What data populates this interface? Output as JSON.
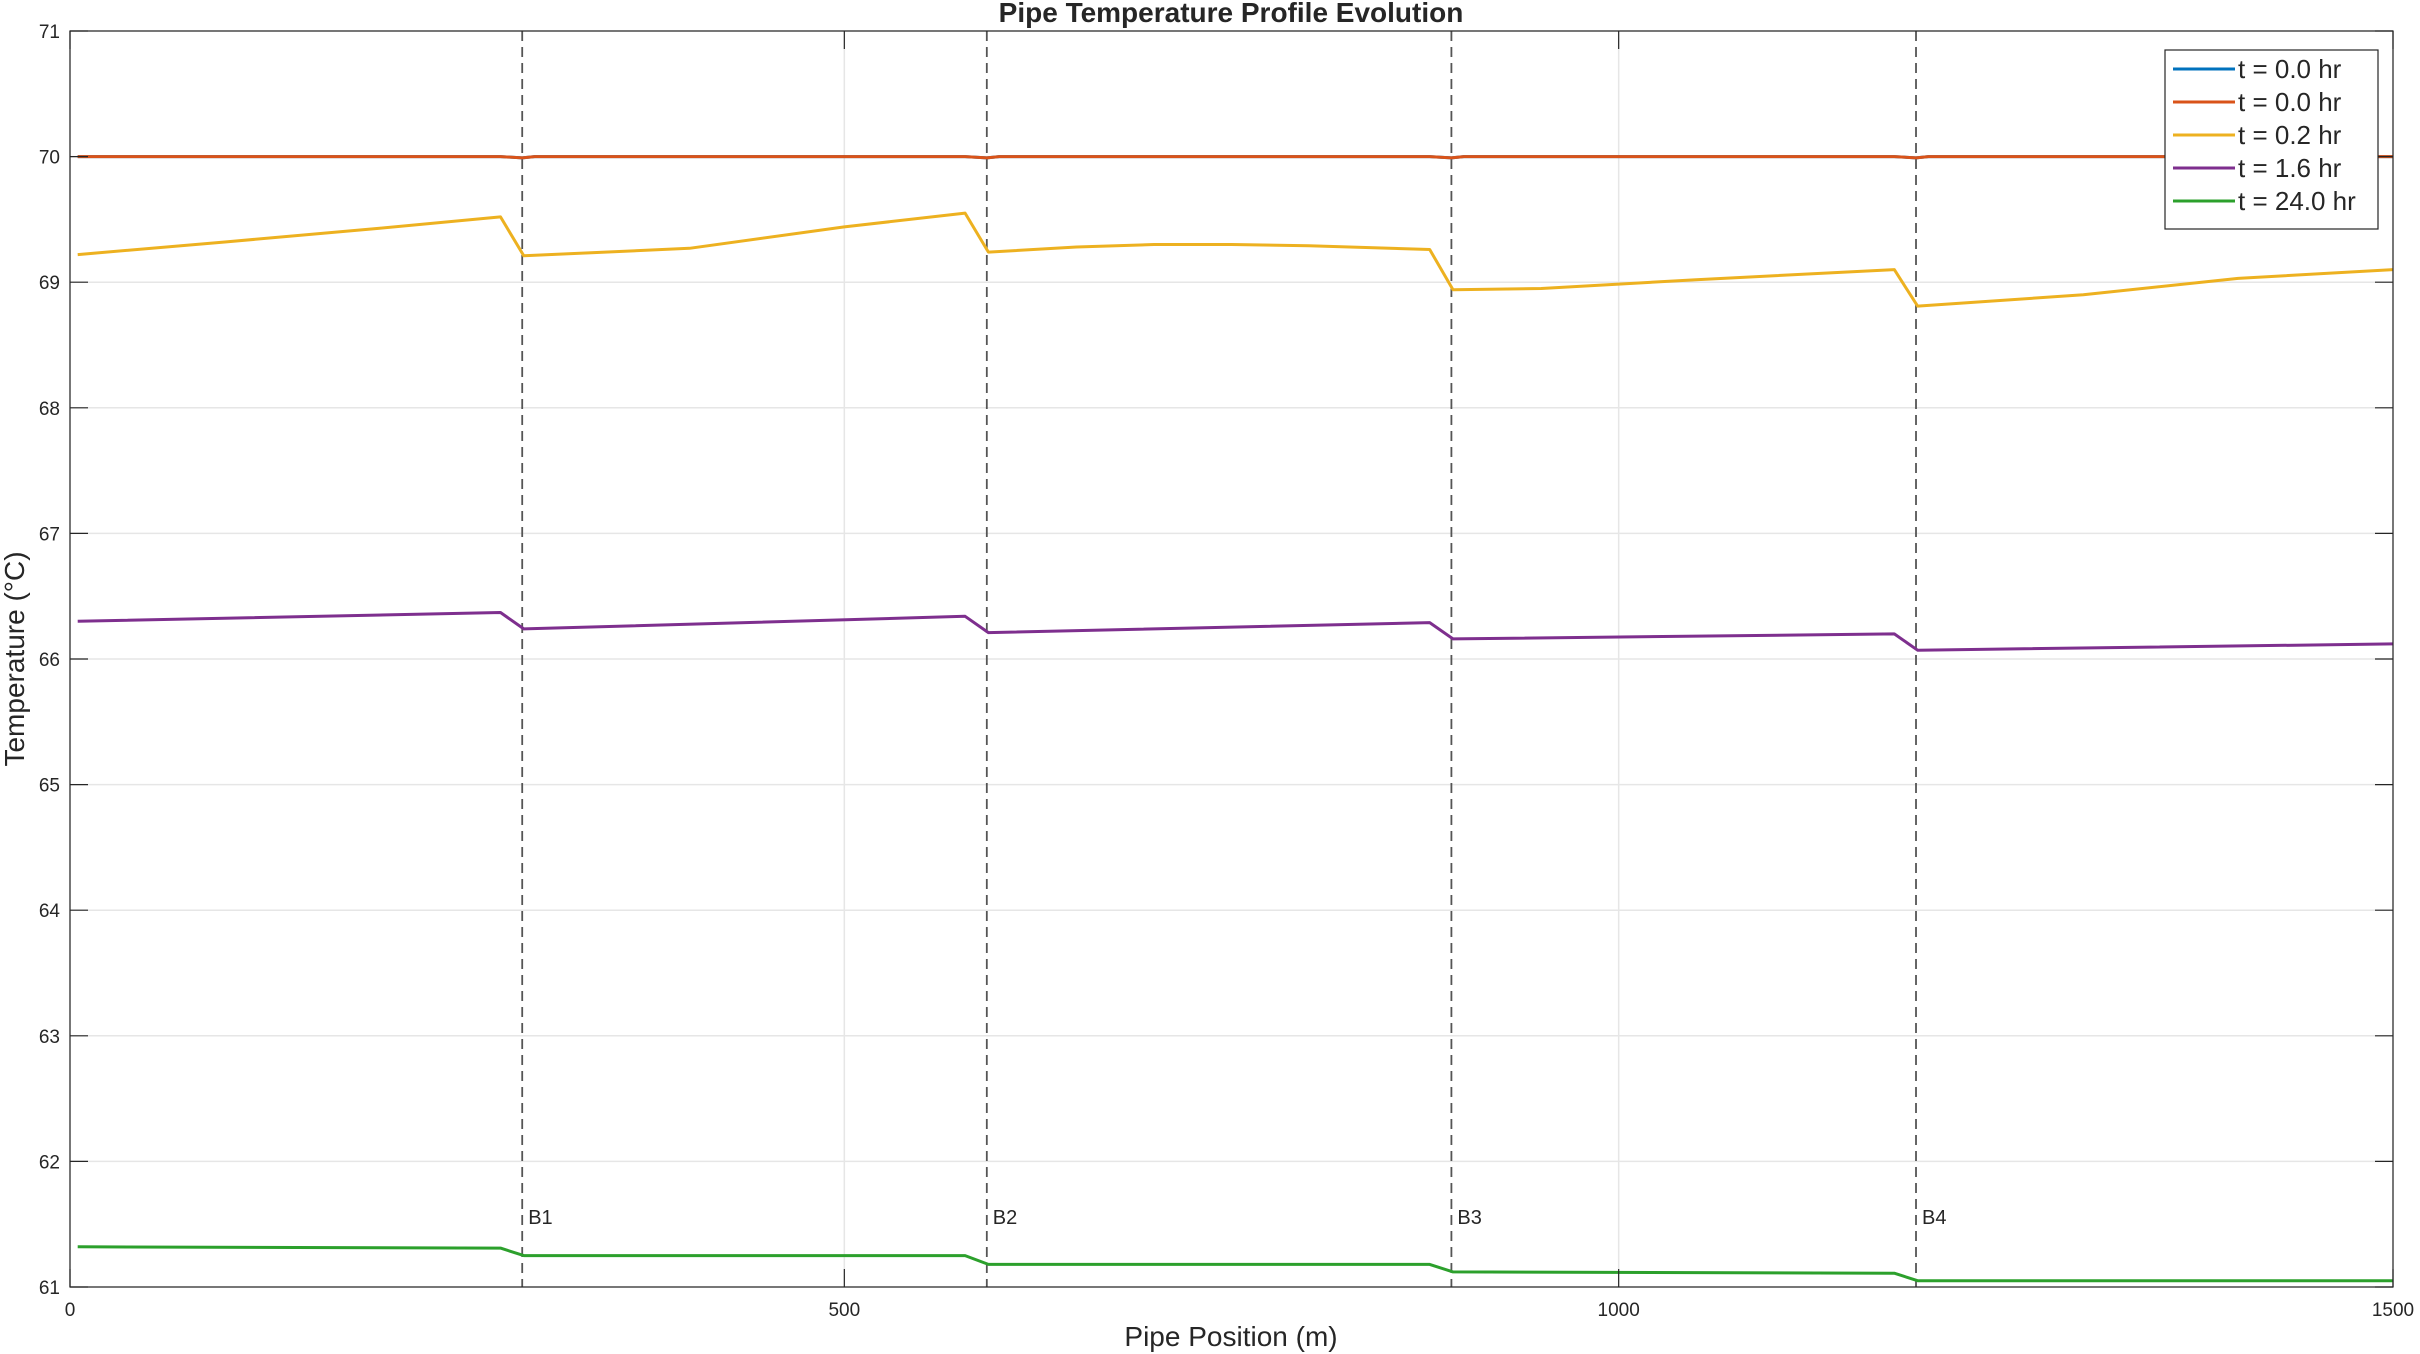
{
  "chart_data": {
    "type": "line",
    "title": "Pipe Temperature Profile Evolution",
    "xlabel": "Pipe Position (m)",
    "ylabel": "Temperature (°C)",
    "xlim": [
      0,
      1500
    ],
    "ylim": [
      61,
      71
    ],
    "xticks": [
      0,
      500,
      1000,
      1500
    ],
    "yticks": [
      61,
      62,
      63,
      64,
      65,
      66,
      67,
      68,
      69,
      70,
      71
    ],
    "grid": true,
    "legend_position": "top-right",
    "markers": [
      {
        "label": "B1",
        "x": 292
      },
      {
        "label": "B2",
        "x": 592
      },
      {
        "label": "B3",
        "x": 892
      },
      {
        "label": "B4",
        "x": 1192
      }
    ],
    "series": [
      {
        "name": "t = 0.0 hr",
        "color": "#0072BD",
        "x": [
          5,
          278,
          292,
          300,
          578,
          592,
          600,
          878,
          892,
          900,
          1178,
          1192,
          1200,
          1500
        ],
        "y": [
          70,
          70,
          69.99,
          70,
          70,
          69.99,
          70,
          70,
          69.99,
          70,
          70,
          69.99,
          70,
          70
        ]
      },
      {
        "name": "t = 0.0 hr",
        "color": "#D95319",
        "x": [
          5,
          278,
          292,
          300,
          578,
          592,
          600,
          878,
          892,
          900,
          1178,
          1192,
          1200,
          1500
        ],
        "y": [
          70,
          70,
          69.99,
          70,
          70,
          69.99,
          70,
          70,
          69.99,
          70,
          70,
          69.99,
          70,
          70
        ]
      },
      {
        "name": "t = 0.2 hr",
        "color": "#EDB120",
        "x": [
          5,
          100,
          200,
          278,
          293,
          400,
          500,
          578,
          593,
          650,
          700,
          750,
          800,
          878,
          893,
          950,
          1050,
          1178,
          1193,
          1300,
          1400,
          1500
        ],
        "y": [
          69.22,
          69.32,
          69.43,
          69.52,
          69.21,
          69.27,
          69.44,
          69.55,
          69.24,
          69.28,
          69.3,
          69.3,
          69.29,
          69.26,
          68.94,
          68.95,
          69.02,
          69.1,
          68.81,
          68.9,
          69.03,
          69.1
        ]
      },
      {
        "name": "t = 1.6 hr",
        "color": "#7E2F8E",
        "x": [
          5,
          278,
          293,
          578,
          593,
          878,
          893,
          1178,
          1193,
          1500
        ],
        "y": [
          66.3,
          66.37,
          66.24,
          66.34,
          66.21,
          66.29,
          66.16,
          66.2,
          66.07,
          66.12
        ]
      },
      {
        "name": "t = 24.0 hr",
        "color": "#2CA02C",
        "x": [
          5,
          278,
          293,
          578,
          593,
          878,
          893,
          1178,
          1193,
          1500
        ],
        "y": [
          61.32,
          61.31,
          61.25,
          61.25,
          61.18,
          61.18,
          61.12,
          61.11,
          61.05,
          61.05
        ]
      }
    ]
  }
}
